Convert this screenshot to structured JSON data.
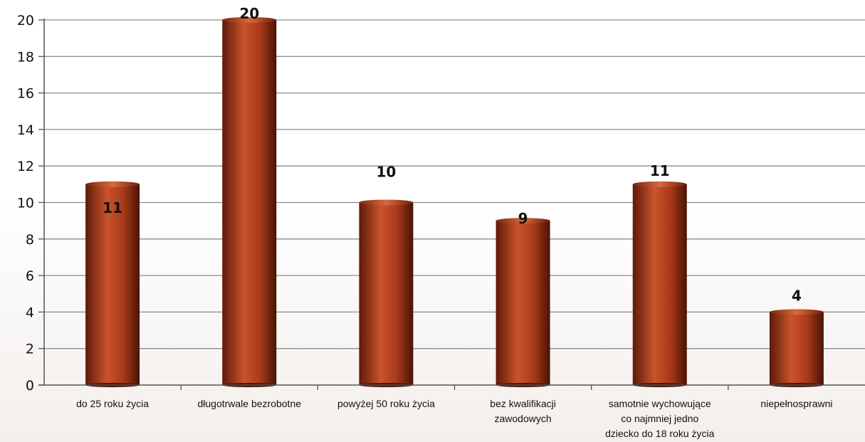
{
  "chart_data": {
    "type": "bar",
    "title": "",
    "xlabel": "",
    "ylabel": "",
    "ylim": [
      0,
      20
    ],
    "ytick_step": 2,
    "grid": true,
    "legend": "none",
    "categories": [
      [
        "do 25 roku życia"
      ],
      [
        "długotrwale bezrobotne"
      ],
      [
        "powyżej 50 roku życia"
      ],
      [
        "bez kwalifikacji",
        "zawodowych"
      ],
      [
        "samotnie wychowujące",
        "co najmniej jedno",
        "dziecko do 18 roku życia"
      ],
      [
        "niepełnosprawni"
      ]
    ],
    "values": [
      11,
      20,
      10,
      9,
      11,
      4
    ],
    "data_labels": [
      "11",
      "20",
      "10",
      "9",
      "11",
      "4"
    ],
    "bar_color": "#a8391a",
    "bar_dark": "#5e1a08",
    "bar_light": "#c9542c"
  }
}
